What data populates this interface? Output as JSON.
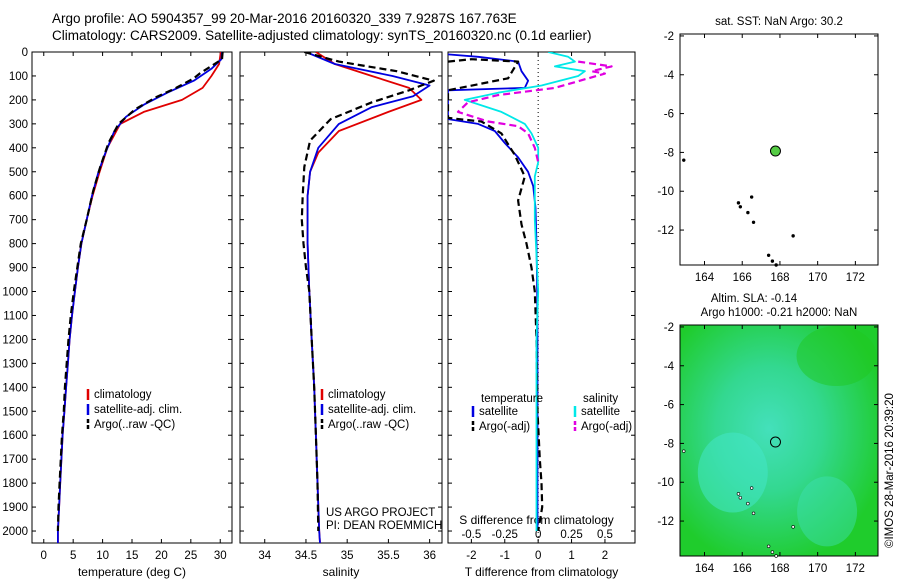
{
  "titles": {
    "line1": "Argo profile: AO 5904357_99 20-Mar-2016 20160320_339 7.9287S 167.763E",
    "line2": "Climatology: CARS2009. Satellite-adjusted climatology: synTS_20160320.nc (0.1d earlier)"
  },
  "credit": "©IMOS 28-Mar-2016 20:39:20",
  "colors": {
    "clim": "#e00000",
    "sat": "#0000e0",
    "argo": "#000000",
    "sal_sat": "#00e8e8",
    "sal_argo": "#e000e0",
    "map_bg_top": "#22cc33",
    "map_bg_mid": "#33ddaa"
  },
  "chart_data": [
    {
      "type": "line",
      "xlabel": "temperature (deg C)",
      "ylabel": "",
      "xlim": [
        -2,
        32
      ],
      "ylim": [
        2050,
        0
      ],
      "xticks": [
        0,
        5,
        10,
        15,
        20,
        25,
        30
      ],
      "yticks": [
        0,
        100,
        200,
        300,
        400,
        500,
        600,
        700,
        800,
        900,
        1000,
        1100,
        1200,
        1300,
        1400,
        1500,
        1600,
        1700,
        1800,
        1900,
        2000
      ],
      "legend": [
        "climatology",
        "satellite-adj. clim.",
        "Argo(..raw -QC)"
      ],
      "series": [
        {
          "name": "climatology",
          "style": "clim",
          "points": [
            [
              30.1,
              0
            ],
            [
              29.8,
              50
            ],
            [
              28.5,
              100
            ],
            [
              27,
              150
            ],
            [
              23.5,
              200
            ],
            [
              17,
              250
            ],
            [
              13,
              300
            ],
            [
              10.8,
              400
            ],
            [
              9.5,
              500
            ],
            [
              8.3,
              600
            ],
            [
              7.3,
              700
            ],
            [
              6.4,
              800
            ],
            [
              5.8,
              900
            ],
            [
              5.3,
              1000
            ],
            [
              4.8,
              1100
            ],
            [
              4.4,
              1200
            ],
            [
              4.1,
              1300
            ],
            [
              3.8,
              1400
            ],
            [
              3.5,
              1500
            ],
            [
              3.2,
              1600
            ],
            [
              3.0,
              1700
            ],
            [
              2.8,
              1800
            ],
            [
              2.6,
              1900
            ],
            [
              2.4,
              2000
            ],
            [
              2.4,
              2050
            ]
          ]
        },
        {
          "name": "satellite-adj. clim.",
          "style": "sat",
          "points": [
            [
              30.3,
              0
            ],
            [
              30.2,
              30
            ],
            [
              28.5,
              70
            ],
            [
              25.5,
              120
            ],
            [
              21,
              170
            ],
            [
              17,
              220
            ],
            [
              14,
              270
            ],
            [
              12,
              330
            ],
            [
              10.5,
              420
            ],
            [
              9.3,
              500
            ],
            [
              8.2,
              600
            ],
            [
              7.3,
              700
            ],
            [
              6.4,
              800
            ],
            [
              5.8,
              900
            ],
            [
              5.3,
              1000
            ],
            [
              4.8,
              1100
            ],
            [
              4.4,
              1200
            ],
            [
              4.1,
              1300
            ],
            [
              3.8,
              1400
            ],
            [
              3.5,
              1500
            ],
            [
              3.2,
              1600
            ],
            [
              3.0,
              1700
            ],
            [
              2.8,
              1800
            ],
            [
              2.6,
              1900
            ],
            [
              2.4,
              2000
            ],
            [
              2.4,
              2050
            ]
          ]
        },
        {
          "name": "Argo(..raw -QC)",
          "style": "argo",
          "points": [
            [
              30.4,
              0
            ],
            [
              30.3,
              30
            ],
            [
              28.4,
              60
            ],
            [
              26.5,
              90
            ],
            [
              25.5,
              110
            ],
            [
              22.5,
              150
            ],
            [
              19,
              190
            ],
            [
              15.5,
              240
            ],
            [
              12.7,
              300
            ],
            [
              11,
              380
            ],
            [
              9.6,
              480
            ],
            [
              8.4,
              580
            ],
            [
              7.3,
              700
            ],
            [
              6.3,
              800
            ],
            [
              5.7,
              900
            ],
            [
              5.1,
              1000
            ],
            [
              4.6,
              1100
            ],
            [
              4.2,
              1200
            ],
            [
              3.9,
              1300
            ],
            [
              3.6,
              1400
            ],
            [
              3.4,
              1500
            ],
            [
              3.1,
              1600
            ],
            [
              2.9,
              1700
            ],
            [
              2.7,
              1800
            ],
            [
              2.5,
              1900
            ],
            [
              2.4,
              2000
            ]
          ]
        }
      ]
    },
    {
      "type": "line",
      "xlabel": "salinity",
      "xlim": [
        33.7,
        36.15
      ],
      "ylim": [
        2050,
        0
      ],
      "xticks": [
        34,
        34.5,
        35,
        35.5,
        36
      ],
      "legend": [
        "climatology",
        "satellite-adj. clim.",
        "Argo(..raw -QC)"
      ],
      "annotation": [
        "US ARGO PROJECT",
        "PI: DEAN ROEMMICH"
      ],
      "series": [
        {
          "name": "climatology",
          "style": "clim",
          "points": [
            [
              34.62,
              0
            ],
            [
              34.85,
              50
            ],
            [
              35.3,
              100
            ],
            [
              35.75,
              150
            ],
            [
              35.9,
              200
            ],
            [
              35.5,
              250
            ],
            [
              34.9,
              330
            ],
            [
              34.65,
              420
            ],
            [
              34.55,
              500
            ],
            [
              34.52,
              600
            ],
            [
              34.52,
              800
            ],
            [
              34.54,
              1000
            ],
            [
              34.57,
              1200
            ],
            [
              34.6,
              1400
            ],
            [
              34.62,
              1600
            ],
            [
              34.64,
              1800
            ],
            [
              34.66,
              2000
            ],
            [
              34.67,
              2050
            ]
          ]
        },
        {
          "name": "satellite-adj. clim.",
          "style": "sat",
          "points": [
            [
              34.5,
              0
            ],
            [
              34.85,
              50
            ],
            [
              35.55,
              100
            ],
            [
              36.0,
              140
            ],
            [
              35.8,
              185
            ],
            [
              35.3,
              230
            ],
            [
              34.9,
              300
            ],
            [
              34.65,
              400
            ],
            [
              34.55,
              500
            ],
            [
              34.52,
              600
            ],
            [
              34.52,
              800
            ],
            [
              34.54,
              1000
            ],
            [
              34.57,
              1200
            ],
            [
              34.6,
              1400
            ],
            [
              34.62,
              1600
            ],
            [
              34.64,
              1800
            ],
            [
              34.66,
              2000
            ],
            [
              34.67,
              2050
            ]
          ]
        },
        {
          "name": "Argo(..raw -QC)",
          "style": "argo",
          "points": [
            [
              34.48,
              0
            ],
            [
              34.9,
              40
            ],
            [
              35.6,
              80
            ],
            [
              36.05,
              120
            ],
            [
              35.75,
              160
            ],
            [
              35.3,
              210
            ],
            [
              34.8,
              280
            ],
            [
              34.55,
              370
            ],
            [
              34.48,
              480
            ],
            [
              34.46,
              600
            ],
            [
              34.45,
              700
            ],
            [
              34.47,
              800
            ],
            [
              34.5,
              900
            ],
            [
              34.54,
              1000
            ],
            [
              34.57,
              1200
            ],
            [
              34.6,
              1400
            ],
            [
              34.62,
              1600
            ],
            [
              34.64,
              1800
            ],
            [
              34.65,
              2000
            ]
          ]
        }
      ]
    },
    {
      "type": "line",
      "xlabel": "T difference from climatology",
      "x2label": "S difference from climatology",
      "xlim": [
        -2.7,
        2.9
      ],
      "ylim": [
        2050,
        0
      ],
      "xticks": [
        -2,
        -1,
        0,
        1,
        2
      ],
      "x2ticks": [
        "-0.5",
        "-0.25",
        "0",
        "0.25",
        "0.5"
      ],
      "legend_headers": [
        "temperature",
        "salinity"
      ],
      "legend": [
        "satellite",
        "Argo(-adj)",
        "satellite",
        "Argo(-adj)"
      ],
      "series": [
        {
          "name": "satellite",
          "group": "temperature",
          "style": "sat",
          "points": [
            [
              -2.7,
              10
            ],
            [
              -1.8,
              20
            ],
            [
              -0.6,
              40
            ],
            [
              -0.5,
              80
            ],
            [
              -0.3,
              120
            ],
            [
              -0.4,
              150
            ],
            [
              -2.7,
              160
            ],
            [
              -2.7,
              280
            ],
            [
              -1.8,
              300
            ],
            [
              -1.3,
              330
            ],
            [
              -1.0,
              380
            ],
            [
              -0.6,
              440
            ],
            [
              -0.3,
              500
            ],
            [
              -0.15,
              560
            ],
            [
              -0.08,
              650
            ],
            [
              -0.05,
              800
            ],
            [
              -0.03,
              1000
            ],
            [
              -0.02,
              1200
            ],
            [
              -0.02,
              1600
            ],
            [
              -0.02,
              2000
            ]
          ]
        },
        {
          "name": "Argo(-adj)",
          "group": "temperature",
          "style": "argo",
          "points": [
            [
              -2.7,
              40
            ],
            [
              -2.0,
              30
            ],
            [
              -0.6,
              40
            ],
            [
              -0.9,
              110
            ],
            [
              -2.7,
              160
            ],
            [
              -2.7,
              275
            ],
            [
              -1.7,
              290
            ],
            [
              -1.1,
              340
            ],
            [
              -0.7,
              430
            ],
            [
              -0.4,
              520
            ],
            [
              -0.6,
              620
            ],
            [
              -0.5,
              720
            ],
            [
              -0.35,
              800
            ],
            [
              -0.2,
              900
            ],
            [
              -0.1,
              1000
            ],
            [
              -0.05,
              1200
            ],
            [
              -0.02,
              1500
            ],
            [
              0.05,
              1700
            ],
            [
              0.1,
              1800
            ],
            [
              0.12,
              1900
            ],
            [
              0.0,
              2000
            ]
          ]
        },
        {
          "name": "satellite",
          "group": "salinity",
          "style": "sal_sat",
          "points": [
            [
              0.3,
              0
            ],
            [
              0.9,
              20
            ],
            [
              1.1,
              40
            ],
            [
              0.5,
              60
            ],
            [
              1.4,
              80
            ],
            [
              1.2,
              100
            ],
            [
              0.1,
              140
            ],
            [
              -1.2,
              170
            ],
            [
              -2.2,
              200
            ],
            [
              -1.1,
              250
            ],
            [
              -0.4,
              300
            ],
            [
              -0.2,
              340
            ],
            [
              0,
              400
            ],
            [
              0,
              460
            ],
            [
              -0.1,
              520
            ],
            [
              -0.1,
              700
            ],
            [
              0,
              1000
            ],
            [
              -0.05,
              1200
            ],
            [
              -0.05,
              2000
            ]
          ]
        },
        {
          "name": "Argo(-adj)",
          "group": "salinity",
          "style": "sal_argo",
          "points": [
            [
              1.2,
              40
            ],
            [
              2.2,
              60
            ],
            [
              1.6,
              80
            ],
            [
              2.0,
              90
            ],
            [
              1.5,
              110
            ],
            [
              0.5,
              150
            ],
            [
              -1.2,
              180
            ],
            [
              -2.1,
              210
            ],
            [
              -2.4,
              250
            ],
            [
              -1.5,
              290
            ],
            [
              -0.6,
              310
            ],
            [
              -0.3,
              340
            ],
            [
              -0.1,
              400
            ],
            [
              0,
              460
            ]
          ]
        }
      ]
    },
    {
      "type": "scatter",
      "title": "sat. SST: NaN Argo: 30.2",
      "xlim": [
        162.7,
        173.2
      ],
      "ylim": [
        -13.8,
        -1.9
      ],
      "xticks": [
        164,
        166,
        168,
        170,
        172
      ],
      "yticks": [
        -2,
        -4,
        -6,
        -8,
        -10,
        -12
      ],
      "argo_position": [
        167.763,
        -7.9287
      ],
      "argo_value_color": "#55cc44"
    },
    {
      "type": "heatmap",
      "title_lines": [
        "Altim. SLA: -0.14",
        "Argo h1000: -0.21 h2000: NaN"
      ],
      "xlim": [
        162.7,
        173.2
      ],
      "ylim": [
        -13.8,
        -1.9
      ],
      "xticks": [
        164,
        166,
        168,
        170,
        172
      ],
      "yticks": [
        -2,
        -4,
        -6,
        -8,
        -10,
        -12
      ],
      "argo_position": [
        167.763,
        -7.9287
      ]
    }
  ]
}
